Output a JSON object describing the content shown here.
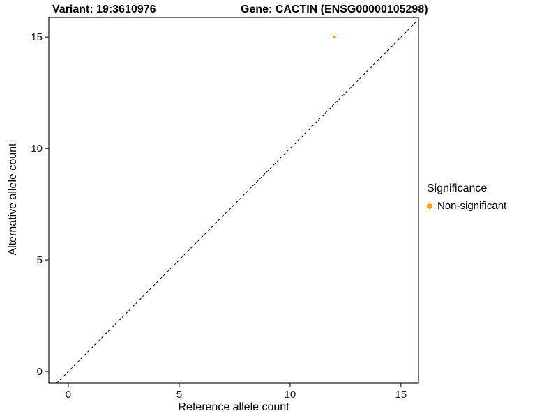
{
  "chart_data": {
    "type": "scatter",
    "title_left": "Variant: 19:3610976",
    "title_right": "Gene: CACTIN (ENSG00000105298)",
    "xlabel": "Reference allele count",
    "ylabel": "Alternative allele count",
    "xticks": [
      0,
      5,
      10,
      15
    ],
    "yticks": [
      0,
      5,
      10,
      15
    ],
    "xlim": [
      -0.88,
      15.79
    ],
    "ylim": [
      -0.53,
      15.88
    ],
    "grid": false,
    "identity_line": true,
    "identity_line_style": "dashed",
    "points": [
      {
        "x": 12,
        "y": 15,
        "series": "Non-significant"
      }
    ],
    "point_color": "#FFA500",
    "legend": {
      "position": "right",
      "title": "Significance",
      "entries": [
        {
          "label": "Non-significant",
          "color": "#FFA500"
        }
      ]
    }
  }
}
